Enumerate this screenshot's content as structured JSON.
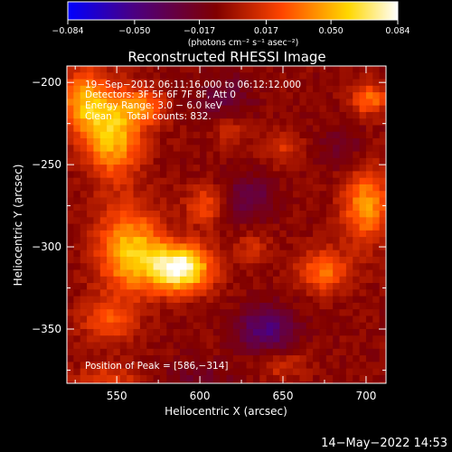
{
  "chart_data": {
    "type": "heatmap",
    "title": "Reconstructed RHESSI Image",
    "xlabel": "Heliocentric X (arcsec)",
    "ylabel": "Heliocentric Y (arcsec)",
    "xlim": [
      520,
      712
    ],
    "ylim": [
      -383,
      -190
    ],
    "x_ticks": [
      550,
      600,
      650,
      700
    ],
    "x_tick_labels": [
      "550",
      "600",
      "650",
      "700"
    ],
    "y_ticks": [
      -200,
      -250,
      -300,
      -350
    ],
    "y_tick_labels": [
      "−200",
      "−250",
      "−300",
      "−350"
    ],
    "colorbar": {
      "label": "(photons cm⁻² s⁻¹ asec⁻²)",
      "range": [
        -0.084,
        0.084
      ],
      "tick_values": [
        -0.084,
        -0.05,
        -0.017,
        0.017,
        0.05,
        0.084
      ],
      "tick_labels": [
        "−0.084",
        "−0.050",
        "−0.017",
        "0.017",
        "0.050",
        "0.084"
      ],
      "colormap": [
        "#0000ff",
        "#4b0082",
        "#800000",
        "#ff4500",
        "#ffd700",
        "#ffffff"
      ]
    },
    "annotations": [
      "19−Sep−2012 06:11:16.000 to 06:12:12.000",
      "Detectors: 3F 5F 6F 7F 8F, Att 0",
      "Energy Range: 3.0 − 6.0 keV",
      "Clean     Total counts: 832.",
      "Position of Peak = [586,−314]"
    ],
    "peak_position": [
      586,
      -314
    ],
    "pixel_size_arcsec": 4,
    "sources": [
      {
        "x": 588,
        "y": -313,
        "sx": 13,
        "sy": 10,
        "amp": 0.09
      },
      {
        "x": 558,
        "y": -302,
        "sx": 14,
        "sy": 18,
        "amp": 0.06
      },
      {
        "x": 548,
        "y": -232,
        "sx": 12,
        "sy": 18,
        "amp": 0.06
      },
      {
        "x": 530,
        "y": -212,
        "sx": 10,
        "sy": 14,
        "amp": 0.05
      },
      {
        "x": 566,
        "y": -215,
        "sx": 10,
        "sy": 8,
        "amp": 0.035
      },
      {
        "x": 603,
        "y": -275,
        "sx": 8,
        "sy": 8,
        "amp": 0.03
      },
      {
        "x": 545,
        "y": -345,
        "sx": 12,
        "sy": 10,
        "amp": 0.03
      },
      {
        "x": 618,
        "y": -228,
        "sx": 7,
        "sy": 7,
        "amp": 0.02
      },
      {
        "x": 700,
        "y": -275,
        "sx": 10,
        "sy": 16,
        "amp": 0.05
      },
      {
        "x": 702,
        "y": -210,
        "sx": 8,
        "sy": 7,
        "amp": 0.04
      },
      {
        "x": 675,
        "y": -315,
        "sx": 11,
        "sy": 9,
        "amp": 0.04
      },
      {
        "x": 650,
        "y": -240,
        "sx": 8,
        "sy": 8,
        "amp": 0.02
      },
      {
        "x": 632,
        "y": -300,
        "sx": 7,
        "sy": 7,
        "amp": 0.018
      },
      {
        "x": 650,
        "y": -372,
        "sx": 10,
        "sy": 6,
        "amp": 0.02
      },
      {
        "x": 545,
        "y": -380,
        "sx": 14,
        "sy": 6,
        "amp": 0.025
      },
      {
        "x": 640,
        "y": -350,
        "sx": 12,
        "sy": 10,
        "amp": -0.04
      },
      {
        "x": 615,
        "y": -210,
        "sx": 12,
        "sy": 10,
        "amp": -0.02
      },
      {
        "x": 630,
        "y": -270,
        "sx": 10,
        "sy": 10,
        "amp": -0.025
      },
      {
        "x": 685,
        "y": -240,
        "sx": 10,
        "sy": 10,
        "amp": -0.015
      },
      {
        "x": 600,
        "y": -380,
        "sx": 14,
        "sy": 8,
        "amp": -0.015
      }
    ]
  },
  "footer_timestamp": "14−May−2022 14:53"
}
